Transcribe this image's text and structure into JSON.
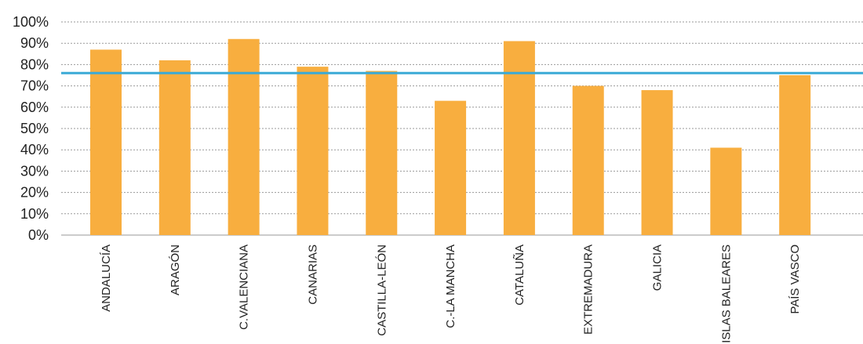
{
  "chart_data": {
    "type": "bar",
    "categories": [
      "ANDALUCÍA",
      "ARAGÓN",
      "C.VALENCIANA",
      "CANARIAS",
      "CASTILLA-LEÓN",
      "C.-LA MANCHA",
      "CATALUÑA",
      "EXTREMADURA",
      "GALICIA",
      "ISLAS BALEARES",
      "PAÍS VASCO"
    ],
    "values": [
      87,
      82,
      92,
      79,
      77,
      63,
      91,
      70,
      68,
      41,
      75
    ],
    "reference_value": 76,
    "ylim": [
      0,
      100
    ],
    "y_ticks": [
      "0%",
      "10%",
      "20%",
      "30%",
      "40%",
      "50%",
      "60%",
      "70%",
      "80%",
      "90%",
      "100%"
    ],
    "grid": true,
    "colors": {
      "bar": "#F8AE3F",
      "reference_line": "#3AAAD6",
      "grid": "#9a9a9a"
    }
  }
}
